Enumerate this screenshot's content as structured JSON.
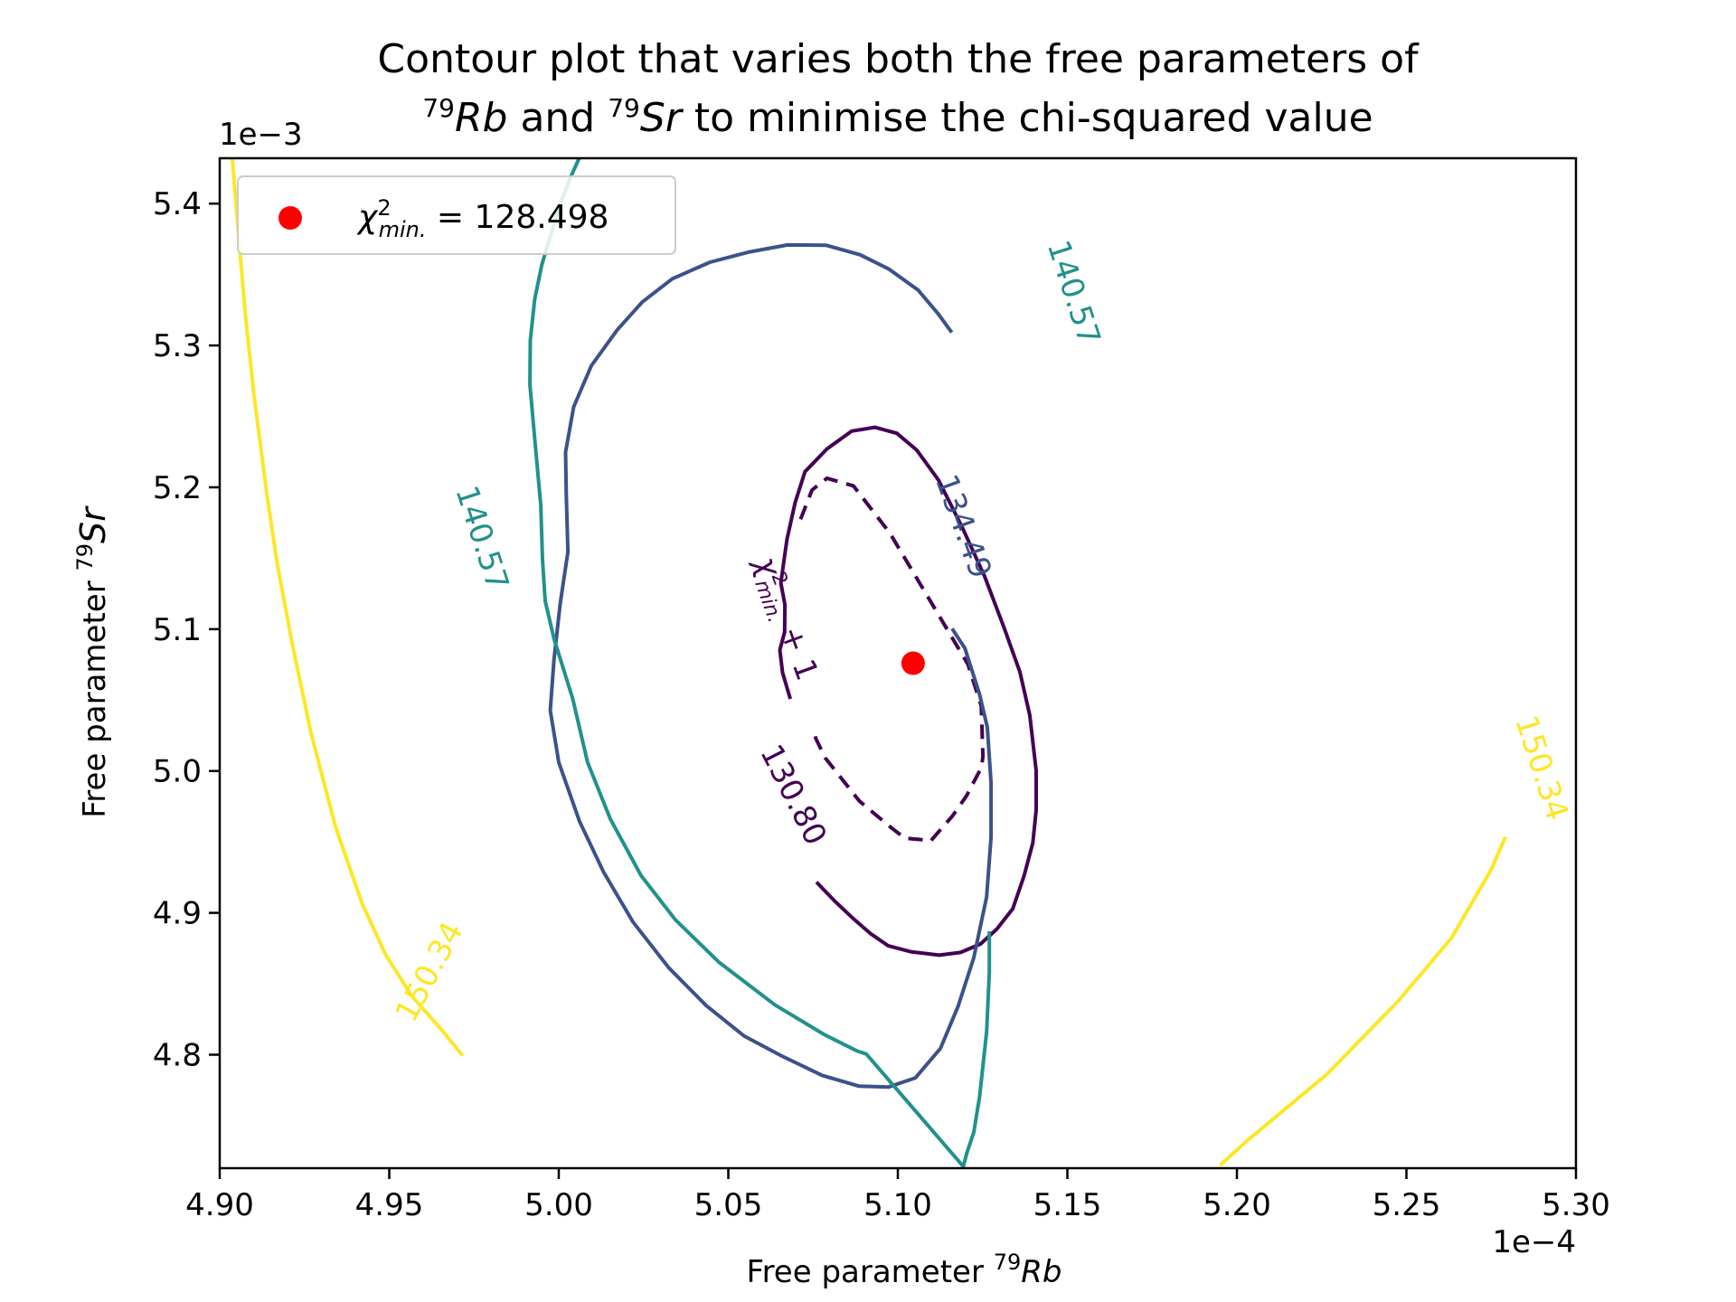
{
  "chart_data": {
    "type": "contour",
    "title_line1": "Contour plot that varies both the free parameters of",
    "title_line2": {
      "sup1": "79",
      "iso1": "Rb",
      "and": " and ",
      "sup2": "79",
      "iso2": "Sr",
      "rest": " to minimise the chi-squared value"
    },
    "xlabel": {
      "text": "Free parameter ",
      "sup": "79",
      "iso": "Rb"
    },
    "ylabel": {
      "text": "Free parameter ",
      "sup": "79",
      "iso": "Sr"
    },
    "x_offset_label": "1e−4",
    "y_offset_label": "1e−3",
    "xlim": [
      4.9,
      5.3
    ],
    "ylim": [
      4.72,
      5.432
    ],
    "xticks": [
      4.9,
      4.95,
      5.0,
      5.05,
      5.1,
      5.15,
      5.2,
      5.25,
      5.3
    ],
    "xtick_labels": [
      "4.90",
      "4.95",
      "5.00",
      "5.05",
      "5.10",
      "5.15",
      "5.20",
      "5.25",
      "5.30"
    ],
    "yticks": [
      4.8,
      4.9,
      5.0,
      5.1,
      5.2,
      5.3,
      5.4
    ],
    "ytick_labels": [
      "4.8",
      "4.9",
      "5.0",
      "5.1",
      "5.2",
      "5.3",
      "5.4"
    ],
    "minimum": {
      "x": 5.1045,
      "y": 5.076,
      "chi2": 128.498,
      "color": "#ff0000"
    },
    "legend": {
      "symbol": "χ",
      "sup": "2",
      "sub": "min.",
      "value_text": " = 128.498",
      "placement": "upper left"
    },
    "contours": [
      {
        "level_label": "+ 1",
        "level_symbol": "χ",
        "level_sup": "2",
        "level_sub": "min.",
        "level_value": 129.498,
        "style": "dashed",
        "color": "#440154",
        "points": [
          [
            5.0713,
            5.1775
          ],
          [
            5.0747,
            5.1981
          ],
          [
            5.0791,
            5.2064
          ],
          [
            5.0869,
            5.201
          ],
          [
            5.0976,
            5.1679
          ],
          [
            5.1092,
            5.1214
          ],
          [
            5.1207,
            5.0751
          ],
          [
            5.1246,
            5.0457
          ],
          [
            5.1251,
            5.01
          ],
          [
            5.1246,
            5.0023
          ],
          [
            5.1203,
            4.9826
          ],
          [
            5.1161,
            4.9683
          ],
          [
            5.1096,
            4.9505
          ],
          [
            5.1066,
            4.9517
          ],
          [
            5.1021,
            4.9526
          ],
          [
            5.098,
            4.9601
          ],
          [
            5.0887,
            4.9787
          ],
          [
            5.0786,
            5.0092
          ],
          [
            5.0758,
            5.023
          ],
          [
            5.0753,
            5.0296
          ]
        ]
      },
      {
        "level_label": "130.80",
        "level_value": 130.8,
        "style": "solid",
        "color": "#440154",
        "points": [
          [
            5.0683,
            5.0508
          ],
          [
            5.066,
            5.0693
          ],
          [
            5.0652,
            5.0854
          ],
          [
            5.0666,
            5.0979
          ],
          [
            5.0667,
            5.1173
          ],
          [
            5.0655,
            5.1326
          ],
          [
            5.0673,
            5.1634
          ],
          [
            5.0697,
            5.1892
          ],
          [
            5.0726,
            5.211
          ],
          [
            5.0791,
            5.2271
          ],
          [
            5.0864,
            5.2396
          ],
          [
            5.0932,
            5.2423
          ],
          [
            5.0997,
            5.2381
          ],
          [
            5.1056,
            5.2262
          ],
          [
            5.112,
            5.2051
          ],
          [
            5.1189,
            5.1722
          ],
          [
            5.1256,
            5.1372
          ],
          [
            5.1314,
            5.1005
          ],
          [
            5.136,
            5.0698
          ],
          [
            5.1389,
            5.0394
          ],
          [
            5.1408,
            5.0003
          ],
          [
            5.1408,
            4.9725
          ],
          [
            5.1398,
            4.9493
          ],
          [
            5.1372,
            4.9259
          ],
          [
            5.1339,
            4.9029
          ],
          [
            5.1292,
            4.8886
          ],
          [
            5.1244,
            4.8781
          ],
          [
            5.1185,
            4.8721
          ],
          [
            5.1122,
            4.8702
          ],
          [
            5.1038,
            4.8726
          ],
          [
            5.0971,
            4.8769
          ],
          [
            5.092,
            4.8853
          ],
          [
            5.087,
            4.8957
          ],
          [
            5.0813,
            4.9085
          ],
          [
            5.076,
            4.9217
          ]
        ]
      },
      {
        "level_label": "134.49",
        "level_value": 134.49,
        "style": "solid",
        "color": "#3b528b",
        "points": [
          [
            5.116,
            5.1004
          ],
          [
            5.1198,
            5.0865
          ],
          [
            5.1241,
            5.0541
          ],
          [
            5.1264,
            5.0307
          ],
          [
            5.1275,
            4.9916
          ],
          [
            5.1275,
            4.9535
          ],
          [
            5.1262,
            4.9112
          ],
          [
            5.1224,
            4.8684
          ],
          [
            5.1178,
            4.8342
          ],
          [
            5.1126,
            4.8045
          ],
          [
            5.1052,
            4.7837
          ],
          [
            5.0972,
            4.7772
          ],
          [
            5.0886,
            4.7778
          ],
          [
            5.0777,
            4.7854
          ],
          [
            5.0655,
            4.7994
          ],
          [
            5.0546,
            4.8133
          ],
          [
            5.0435,
            4.8346
          ],
          [
            5.0324,
            4.8614
          ],
          [
            5.0219,
            4.8936
          ],
          [
            5.0132,
            4.9288
          ],
          [
            5.0061,
            4.9646
          ],
          [
            5.0,
            5.0061
          ],
          [
            4.9975,
            5.0427
          ],
          [
            4.9986,
            5.0784
          ],
          [
            5.0004,
            5.1177
          ],
          [
            5.0027,
            5.1545
          ],
          [
            5.0022,
            5.1949
          ],
          [
            5.002,
            5.2248
          ],
          [
            5.0044,
            5.2567
          ],
          [
            5.0096,
            5.2857
          ],
          [
            5.0172,
            5.3108
          ],
          [
            5.0246,
            5.3306
          ],
          [
            5.0335,
            5.347
          ],
          [
            5.0446,
            5.3587
          ],
          [
            5.0559,
            5.3658
          ],
          [
            5.0675,
            5.3709
          ],
          [
            5.0788,
            5.3707
          ],
          [
            5.0889,
            5.3639
          ],
          [
            5.0974,
            5.3538
          ],
          [
            5.106,
            5.339
          ],
          [
            5.1119,
            5.3223
          ],
          [
            5.1159,
            5.3092
          ]
        ]
      },
      {
        "level_label": "140.57",
        "level_value": 140.57,
        "style": "solid",
        "color": "#21918c",
        "points": [
          [
            5.127,
            4.887
          ],
          [
            5.127,
            4.8585
          ],
          [
            5.1262,
            4.8161
          ],
          [
            5.1241,
            4.7703
          ],
          [
            5.1224,
            4.7453
          ],
          [
            5.1204,
            4.731
          ],
          [
            5.1193,
            4.7212
          ],
          [
            5.0907,
            4.8005
          ],
          [
            5.088,
            4.8026
          ],
          [
            5.0783,
            4.8142
          ],
          [
            5.0637,
            4.8352
          ],
          [
            5.0473,
            4.8651
          ],
          [
            5.0344,
            4.8951
          ],
          [
            5.0243,
            4.9262
          ],
          [
            5.0152,
            4.9662
          ],
          [
            5.0085,
            5.006
          ],
          [
            5.0041,
            5.051
          ],
          [
            4.9986,
            5.0933
          ],
          [
            4.996,
            5.1198
          ],
          [
            4.9952,
            5.1491
          ],
          [
            4.9947,
            5.1874
          ],
          [
            4.993,
            5.2314
          ],
          [
            4.9915,
            5.2722
          ],
          [
            4.9916,
            5.3036
          ],
          [
            4.9929,
            5.3327
          ],
          [
            4.995,
            5.3567
          ],
          [
            4.9978,
            5.3792
          ],
          [
            5.0,
            5.397
          ],
          [
            5.0032,
            5.417
          ],
          [
            5.006,
            5.432
          ]
        ]
      },
      {
        "level_label": "150.34",
        "level_value": 150.34,
        "style": "solid",
        "color": "#fde725",
        "points": [
          [
            5.2792,
            4.9537
          ],
          [
            5.275,
            4.9305
          ],
          [
            5.2633,
            4.8823
          ],
          [
            5.2475,
            4.8376
          ],
          [
            5.2264,
            4.7859
          ],
          [
            5.2028,
            4.7389
          ],
          [
            5.195,
            4.722
          ],
          [
            4.9717,
            4.7993
          ],
          [
            4.9653,
            4.8179
          ],
          [
            4.9565,
            4.8418
          ],
          [
            4.949,
            4.8703
          ],
          [
            4.942,
            4.9066
          ],
          [
            4.9342,
            4.9604
          ],
          [
            4.9269,
            5.027
          ],
          [
            4.9214,
            5.0897
          ],
          [
            4.917,
            5.1458
          ],
          [
            4.9139,
            5.1953
          ],
          [
            4.9101,
            5.2649
          ],
          [
            4.9075,
            5.3236
          ],
          [
            4.9053,
            5.3847
          ],
          [
            4.9037,
            5.432
          ]
        ]
      }
    ]
  }
}
